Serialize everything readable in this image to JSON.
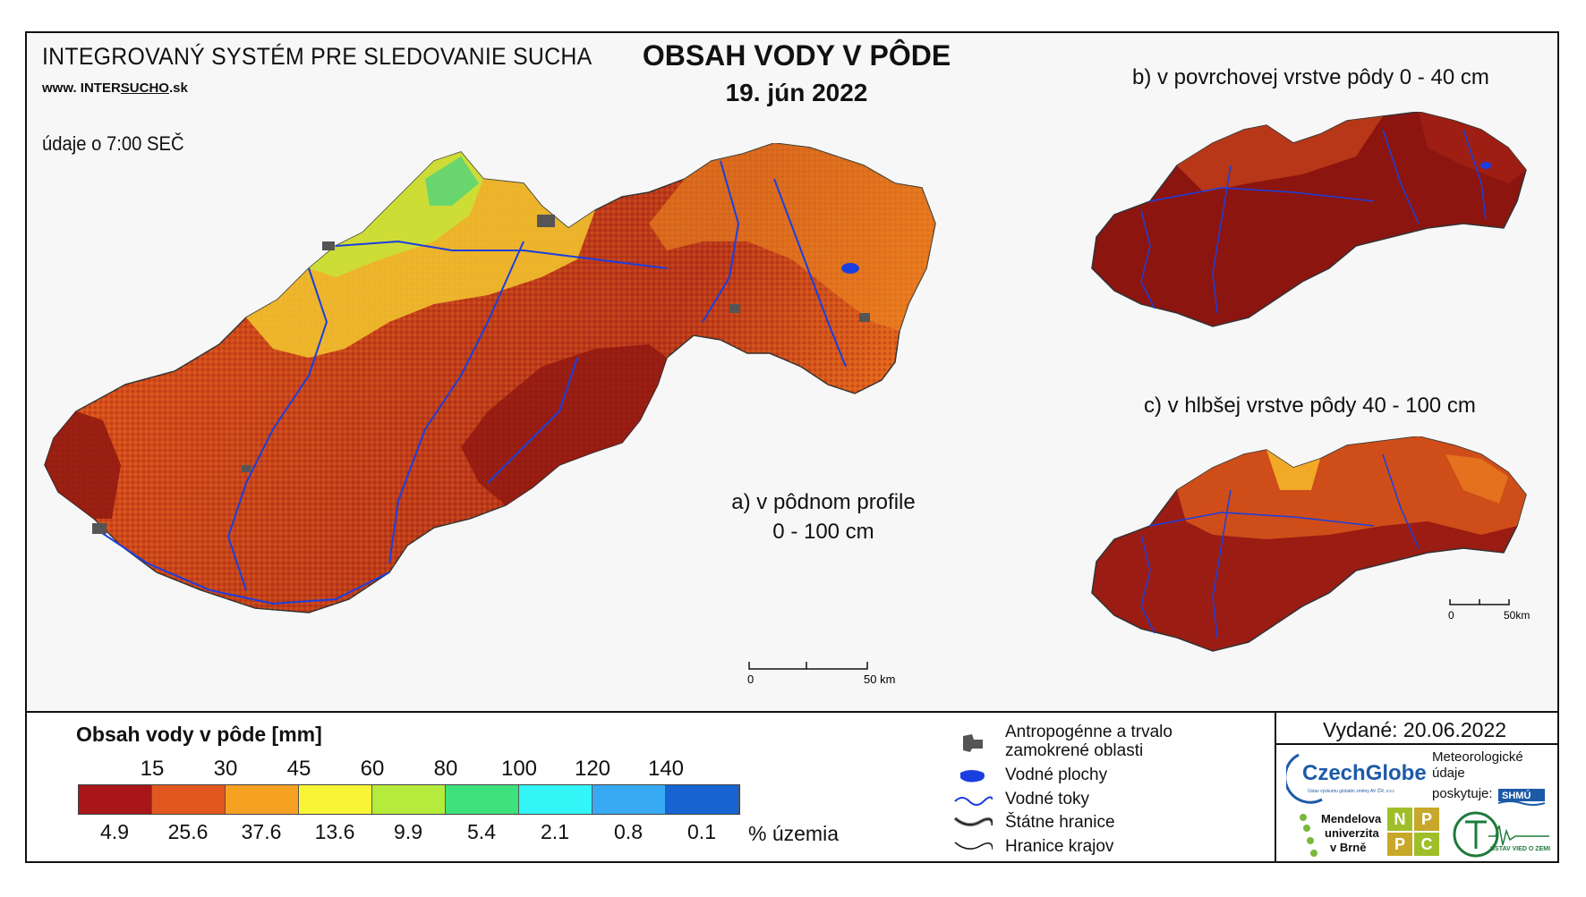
{
  "header": {
    "system_title": "INTEGROVANÝ SYSTÉM PRE SLEDOVANIE SUCHA",
    "url_prefix": "www. INTER",
    "url_brand": "SUCHO",
    "url_suffix": ".sk",
    "time_note": "údaje o 7:00 SEČ",
    "title": "OBSAH VODY V PÔDE",
    "date": "19. jún 2022"
  },
  "maps": {
    "a_label_line1": "a) v pôdnom profile",
    "a_label_line2": "0 - 100 cm",
    "b_label": "b) v povrchovej vrstve pôdy 0 - 40 cm",
    "c_label": "c) v hlbšej vrstve pôdy 40 - 100 cm",
    "scale_a_start": "0",
    "scale_a_end": "50 km",
    "scale_small_start": "0",
    "scale_small_end": "50km"
  },
  "legend": {
    "title": "Obsah vody v pôde  [mm]",
    "thresholds": [
      "15",
      "30",
      "45",
      "60",
      "80",
      "100",
      "120",
      "140"
    ],
    "classes": [
      {
        "color": "#a8161a",
        "percent": "4.9"
      },
      {
        "color": "#e2571e",
        "percent": "25.6"
      },
      {
        "color": "#f7a123",
        "percent": "37.6"
      },
      {
        "color": "#f8f536",
        "percent": "13.6"
      },
      {
        "color": "#b5ec3b",
        "percent": "9.9"
      },
      {
        "color": "#3ee27c",
        "percent": "5.4"
      },
      {
        "color": "#33f5f7",
        "percent": "2.1"
      },
      {
        "color": "#38aaf3",
        "percent": "0.8"
      },
      {
        "color": "#1663d1",
        "percent": "0.1"
      }
    ],
    "percent_unit": "% územia"
  },
  "symbols": {
    "anthropogenic_line1": "Antropogénne a trvalo",
    "anthropogenic_line2": "zamokrené oblasti",
    "water_bodies": "Vodné plochy",
    "streams": "Vodné toky",
    "state_borders": "Štátne hranice",
    "region_borders": "Hranice krajov"
  },
  "footer": {
    "issued": "Vydané: 20.06.2022",
    "czechglobe": "CzechGlobe",
    "czechglobe_sub": "Ústav výzkumu globální změny AV ČR, v.v.i.",
    "meteo_line1": "Meteorologické",
    "meteo_line2": "údaje",
    "meteo_line3": "poskytuje:",
    "shmu": "SHMÚ",
    "mendel_line1": "Mendelova",
    "mendel_line2": "univerzita",
    "mendel_line3": "v Brně",
    "npp_letters": [
      "N",
      "P",
      "P",
      "C"
    ],
    "ustav": "ÚSTAV VIED O ZEMI"
  },
  "colors": {
    "dry_dark": "#7b0e0e",
    "dry": "#c53a12",
    "orange": "#e4631c",
    "water": "#1a3fe0",
    "anthropogenic": "#555555"
  }
}
